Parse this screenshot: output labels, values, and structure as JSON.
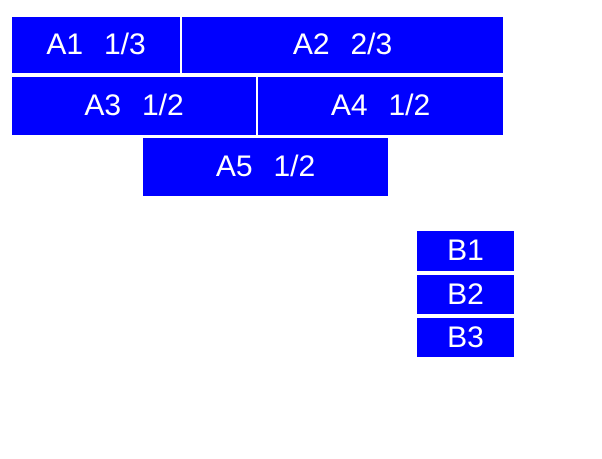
{
  "colors": {
    "box_fill": "#0000ff",
    "box_text": "#ffffff",
    "background": "#ffffff"
  },
  "boxes": {
    "a1": {
      "label": "A1 1/3"
    },
    "a2": {
      "label": "A2 2/3"
    },
    "a3": {
      "label": "A3 1/2"
    },
    "a4": {
      "label": "A4 1/2"
    },
    "a5": {
      "label": "A5 1/2"
    },
    "b1": {
      "label": "B1"
    },
    "b2": {
      "label": "B2"
    },
    "b3": {
      "label": "B3"
    }
  }
}
